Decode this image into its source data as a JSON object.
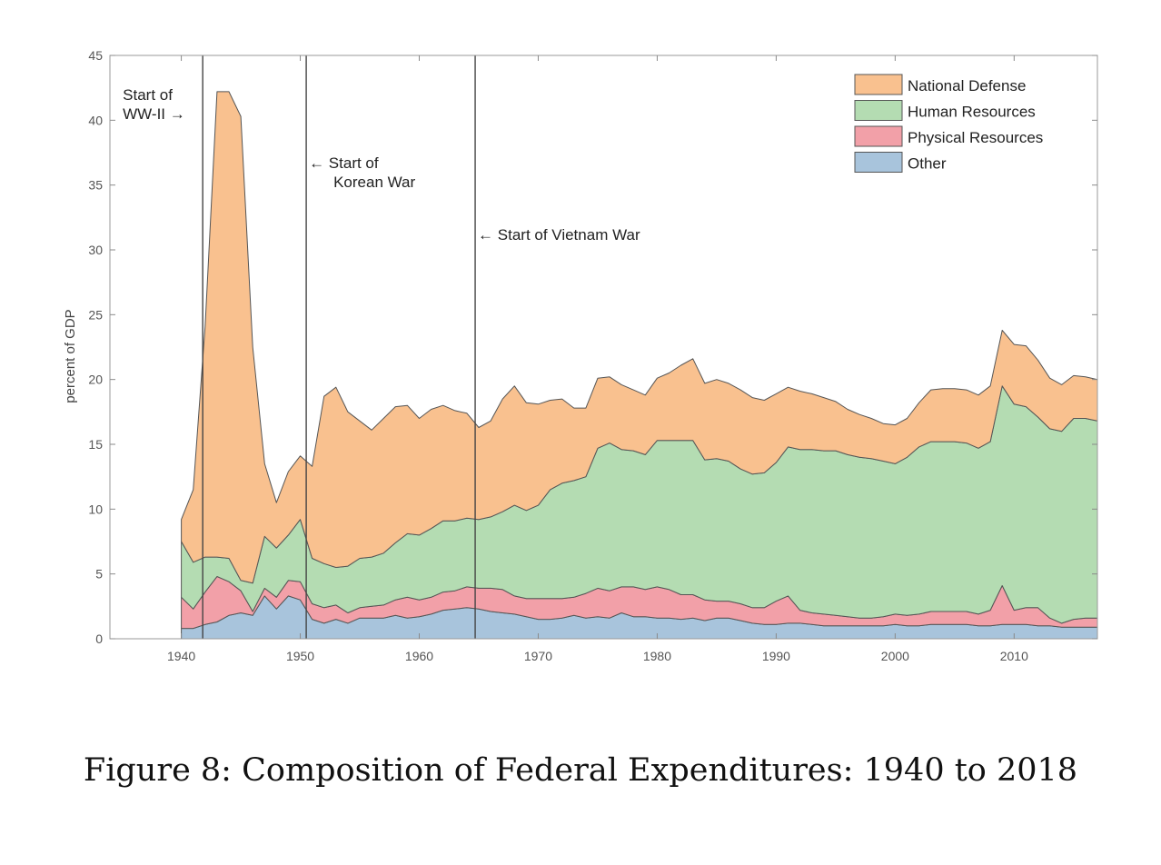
{
  "caption": "Figure 8: Composition of Federal Expenditures: 1940 to 2018",
  "chart_data": {
    "type": "area",
    "stacked": true,
    "title": "",
    "xlabel": "",
    "ylabel": "percent of GDP",
    "xlim": [
      1934,
      2017
    ],
    "ylim": [
      0,
      45
    ],
    "xticks": [
      1940,
      1950,
      1960,
      1970,
      1980,
      1990,
      2000,
      2010
    ],
    "yticks": [
      0,
      5,
      10,
      15,
      20,
      25,
      30,
      35,
      40,
      45
    ],
    "grid": false,
    "legend_position": "top-right",
    "x": [
      1940,
      1941,
      1942,
      1943,
      1944,
      1945,
      1946,
      1947,
      1948,
      1949,
      1950,
      1951,
      1952,
      1953,
      1954,
      1955,
      1956,
      1957,
      1958,
      1959,
      1960,
      1961,
      1962,
      1963,
      1964,
      1965,
      1966,
      1967,
      1968,
      1969,
      1970,
      1971,
      1972,
      1973,
      1974,
      1975,
      1976,
      1977,
      1978,
      1979,
      1980,
      1981,
      1982,
      1983,
      1984,
      1985,
      1986,
      1987,
      1988,
      1989,
      1990,
      1991,
      1992,
      1993,
      1994,
      1995,
      1996,
      1997,
      1998,
      1999,
      2000,
      2001,
      2002,
      2003,
      2004,
      2005,
      2006,
      2007,
      2008,
      2009,
      2010,
      2011,
      2012,
      2013,
      2014,
      2015,
      2016,
      2017
    ],
    "series": [
      {
        "name": "Other",
        "color": "#a8c4dc",
        "values": [
          0.8,
          0.8,
          1.1,
          1.3,
          1.8,
          2.0,
          1.8,
          3.3,
          2.3,
          3.3,
          3.0,
          1.5,
          1.2,
          1.5,
          1.2,
          1.6,
          1.6,
          1.6,
          1.8,
          1.6,
          1.7,
          1.9,
          2.2,
          2.3,
          2.4,
          2.3,
          2.1,
          2.0,
          1.9,
          1.7,
          1.5,
          1.5,
          1.6,
          1.8,
          1.6,
          1.7,
          1.6,
          2.0,
          1.7,
          1.7,
          1.6,
          1.6,
          1.5,
          1.6,
          1.4,
          1.6,
          1.6,
          1.4,
          1.2,
          1.1,
          1.1,
          1.2,
          1.2,
          1.1,
          1.0,
          1.0,
          1.0,
          1.0,
          1.0,
          1.0,
          1.1,
          1.0,
          1.0,
          1.1,
          1.1,
          1.1,
          1.1,
          1.0,
          1.0,
          1.1,
          1.1,
          1.1,
          1.0,
          1.0,
          0.9,
          0.9,
          0.9,
          0.9
        ]
      },
      {
        "name": "Physical Resources",
        "color": "#f2a0a8",
        "values": [
          2.4,
          1.5,
          2.5,
          3.5,
          2.6,
          1.7,
          0.3,
          0.6,
          0.9,
          1.2,
          1.4,
          1.2,
          1.2,
          1.1,
          0.8,
          0.8,
          0.9,
          1.0,
          1.2,
          1.6,
          1.3,
          1.3,
          1.4,
          1.4,
          1.6,
          1.6,
          1.8,
          1.8,
          1.4,
          1.4,
          1.6,
          1.6,
          1.5,
          1.4,
          1.9,
          2.2,
          2.1,
          2.0,
          2.3,
          2.1,
          2.4,
          2.2,
          1.9,
          1.8,
          1.6,
          1.3,
          1.3,
          1.3,
          1.2,
          1.3,
          1.8,
          2.1,
          1.0,
          0.9,
          0.9,
          0.8,
          0.7,
          0.6,
          0.6,
          0.7,
          0.8,
          0.8,
          0.9,
          1.0,
          1.0,
          1.0,
          1.0,
          0.9,
          1.2,
          3.0,
          1.1,
          1.3,
          1.4,
          0.6,
          0.3,
          0.6,
          0.7,
          0.7
        ]
      },
      {
        "name": "Human Resources",
        "color": "#b4dcb2",
        "values": [
          4.3,
          3.6,
          2.7,
          1.5,
          1.8,
          0.8,
          2.2,
          4.0,
          3.8,
          3.5,
          4.8,
          3.5,
          3.4,
          2.9,
          3.6,
          3.8,
          3.8,
          4.0,
          4.4,
          4.9,
          5.0,
          5.3,
          5.5,
          5.4,
          5.3,
          5.3,
          5.5,
          6.0,
          7.0,
          6.8,
          7.2,
          8.4,
          8.9,
          9.0,
          9.0,
          10.8,
          11.4,
          10.6,
          10.5,
          10.4,
          11.3,
          11.5,
          11.9,
          11.9,
          10.8,
          11.0,
          10.8,
          10.4,
          10.3,
          10.4,
          10.7,
          11.5,
          12.4,
          12.6,
          12.6,
          12.7,
          12.5,
          12.4,
          12.3,
          12.0,
          11.6,
          12.2,
          12.9,
          13.1,
          13.1,
          13.1,
          13.0,
          12.8,
          13.0,
          15.4,
          15.9,
          15.5,
          14.7,
          14.6,
          14.8,
          15.5,
          15.4,
          15.2
        ]
      },
      {
        "name": "National Defense",
        "color": "#f9c18f",
        "values": [
          1.7,
          5.6,
          17.8,
          35.9,
          36.0,
          35.8,
          18.2,
          5.6,
          3.5,
          4.9,
          4.9,
          7.1,
          12.9,
          13.9,
          11.9,
          10.6,
          9.8,
          10.4,
          10.5,
          9.9,
          9.0,
          9.2,
          8.9,
          8.5,
          8.1,
          7.1,
          7.4,
          8.7,
          9.2,
          8.3,
          7.8,
          6.9,
          6.5,
          5.6,
          5.3,
          5.4,
          5.1,
          5.0,
          4.7,
          4.6,
          4.8,
          5.2,
          5.8,
          6.3,
          5.9,
          6.1,
          6.0,
          6.1,
          5.9,
          5.6,
          5.3,
          4.6,
          4.5,
          4.3,
          4.1,
          3.8,
          3.5,
          3.3,
          3.1,
          2.9,
          3.0,
          3.0,
          3.4,
          4.0,
          4.1,
          4.1,
          4.1,
          4.1,
          4.3,
          4.3,
          4.6,
          4.7,
          4.4,
          3.9,
          3.6,
          3.3,
          3.2,
          3.2
        ]
      }
    ],
    "legend": [
      "National Defense",
      "Human Resources",
      "Physical Resources",
      "Other"
    ],
    "annotations": [
      {
        "x": 1941.8,
        "lines": [
          "Start of",
          "WW-II"
        ],
        "arrow": "→",
        "side": "left"
      },
      {
        "x": 1950.5,
        "lines": [
          "Start of",
          "Korean War"
        ],
        "arrow": "←",
        "side": "right"
      },
      {
        "x": 1964.7,
        "lines": [
          "Start of Vietnam War"
        ],
        "arrow": "←",
        "side": "right"
      }
    ]
  }
}
